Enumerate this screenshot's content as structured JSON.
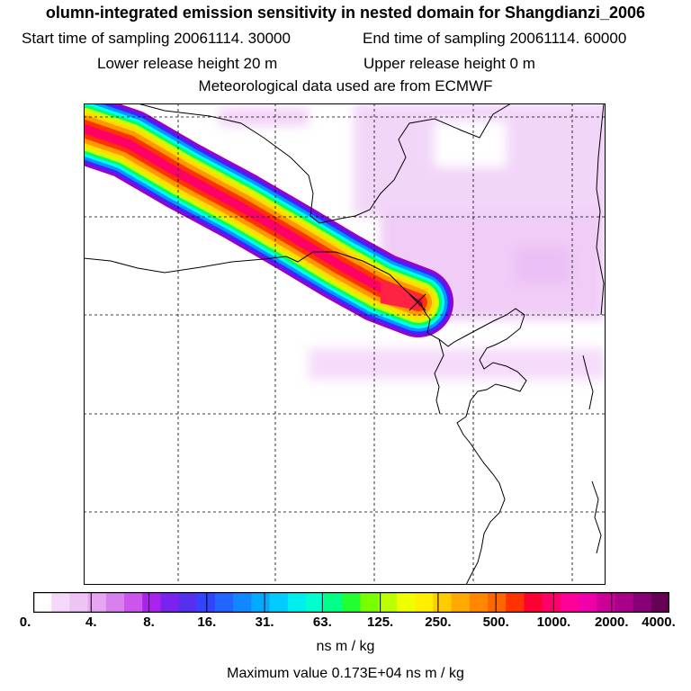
{
  "header": {
    "title": "olumn-integrated emission sensitivity in nested domain for Shangdianzi_2006",
    "start_label": "Start time of sampling 20061114. 30000",
    "end_label": "End time of sampling 20061114. 60000",
    "lower_label": "Lower release height   20 m",
    "upper_label": "Upper release height    0 m",
    "met_label": "Meteorological data used are from ECMWF"
  },
  "map": {
    "station_marker": "cross-icon",
    "plume_colors": [
      "#9900cc",
      "#4422ff",
      "#0099ff",
      "#00ffee",
      "#00ff66",
      "#ccff00",
      "#ffdd00",
      "#ff9900",
      "#ff3300",
      "#ff0066"
    ]
  },
  "legend": {
    "colors": [
      "#ffffff",
      "#f6d8fb",
      "#eec4f7",
      "#e6a6f2",
      "#d980ef",
      "#cc55ee",
      "#aa22ee",
      "#7b22ee",
      "#5530ee",
      "#3344ff",
      "#2266ff",
      "#1188ff",
      "#00aaff",
      "#00ccff",
      "#00eeee",
      "#00ffcc",
      "#00ff88",
      "#22ff33",
      "#77ff00",
      "#bbff00",
      "#eeff00",
      "#ffee00",
      "#ffcc00",
      "#ffaa00",
      "#ff8800",
      "#ff6600",
      "#ff3300",
      "#ff0033",
      "#ff0066",
      "#ff0099",
      "#ee00aa",
      "#cc0099",
      "#aa0088",
      "#880077",
      "#660055"
    ],
    "ticks": [
      "0.",
      "4.",
      "8.",
      "16.",
      "31.",
      "63.",
      "125.",
      "250.",
      "500.",
      "1000.",
      "2000.",
      "4000."
    ],
    "units": "ns m / kg",
    "max_value": "Maximum value  0.173E+04 ns m / kg"
  }
}
